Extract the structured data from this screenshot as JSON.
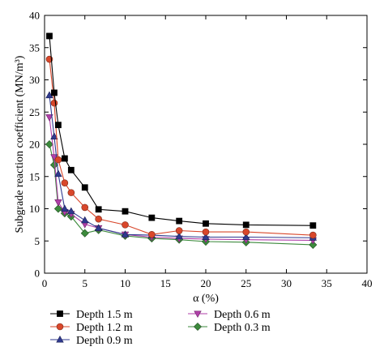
{
  "chart_data": {
    "type": "line",
    "xlabel": "α (%)",
    "ylabel": "Subgrade reaction coefficient (MN/m³)",
    "xlim": [
      0,
      40
    ],
    "ylim": [
      0,
      40
    ],
    "xticks": [
      0,
      5,
      10,
      15,
      20,
      25,
      30,
      35,
      40
    ],
    "yticks": [
      0,
      5,
      10,
      15,
      20,
      25,
      30,
      35,
      40
    ],
    "x_tick_labels": [
      "0",
      "5",
      "10",
      "15",
      "20",
      "25",
      "30",
      "35",
      "40"
    ],
    "y_tick_labels": [
      "0",
      "5",
      "10",
      "15",
      "20",
      "25",
      "30",
      "35",
      "40"
    ],
    "grid": false,
    "legend_placement": "bottom",
    "series": [
      {
        "name": "Depth 1.5 m",
        "color": "#000000",
        "marker": "square",
        "x": [
          0.6,
          1.2,
          1.7,
          2.5,
          3.3,
          5.0,
          6.7,
          10.0,
          13.3,
          16.7,
          20.0,
          25.0,
          33.3
        ],
        "y": [
          36.8,
          28.0,
          23.0,
          17.8,
          16.0,
          13.3,
          9.9,
          9.6,
          8.6,
          8.1,
          7.7,
          7.5,
          7.4
        ]
      },
      {
        "name": "Depth 1.2 m",
        "color": "#d9472b",
        "marker": "circle",
        "x": [
          0.6,
          1.2,
          1.7,
          2.5,
          3.3,
          5.0,
          6.7,
          10.0,
          13.3,
          16.7,
          20.0,
          25.0,
          33.3
        ],
        "y": [
          33.2,
          26.4,
          17.6,
          14.0,
          12.5,
          10.2,
          8.4,
          7.5,
          6.0,
          6.6,
          6.4,
          6.4,
          5.9
        ]
      },
      {
        "name": "Depth 0.9 m",
        "color": "#2f3a8f",
        "marker": "triangle-up",
        "x": [
          0.6,
          1.2,
          1.7,
          2.5,
          3.3,
          5.0,
          6.7,
          10.0,
          13.3,
          16.7,
          20.0,
          25.0,
          33.3
        ],
        "y": [
          27.6,
          21.2,
          15.4,
          10.0,
          9.6,
          8.2,
          7.0,
          6.0,
          5.9,
          5.7,
          5.6,
          5.6,
          5.5
        ]
      },
      {
        "name": "Depth 0.6 m",
        "color": "#b03fa8",
        "marker": "triangle-down",
        "x": [
          0.6,
          1.2,
          1.7,
          2.5,
          3.3,
          5.0,
          6.7,
          10.0,
          13.3,
          16.7,
          20.0,
          25.0,
          33.3
        ],
        "y": [
          24.2,
          18.0,
          11.0,
          9.5,
          9.2,
          7.6,
          7.0,
          6.0,
          5.6,
          5.4,
          5.3,
          5.2,
          5.1
        ]
      },
      {
        "name": "Depth 0.3 m",
        "color": "#3c8a3c",
        "marker": "diamond",
        "x": [
          0.6,
          1.2,
          1.7,
          2.5,
          3.3,
          5.0,
          6.7,
          10.0,
          13.3,
          16.7,
          20.0,
          25.0,
          33.3
        ],
        "y": [
          20.0,
          16.8,
          10.0,
          9.3,
          8.8,
          6.2,
          6.7,
          5.8,
          5.4,
          5.2,
          4.9,
          4.8,
          4.4
        ]
      }
    ]
  }
}
